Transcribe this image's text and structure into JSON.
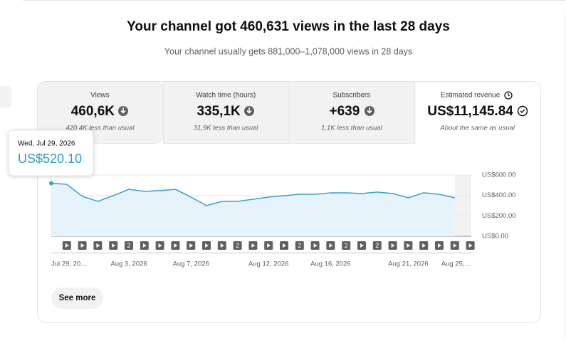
{
  "header": {
    "title": "Your channel got 460,631 views in the last 28 days",
    "subtitle": "Your channel usually gets 881,000–1,078,000 views in 28 days"
  },
  "metrics": [
    {
      "label": "Views",
      "value": "460,6K",
      "note": "420,4K less than usual"
    },
    {
      "label": "Watch time (hours)",
      "value": "335,1K",
      "note": "31,9K less than usual"
    },
    {
      "label": "Subscribers",
      "value": "+639",
      "note": "1,1K less than usual"
    },
    {
      "label": "Estimated revenue",
      "value": "US$11,145.84",
      "note": "About the same as usual"
    }
  ],
  "tooltip": {
    "date": "Wed, Jul 29, 2026",
    "value": "US$520.10"
  },
  "chart": {
    "type": "area",
    "color": "#3a9fd0",
    "categories": [
      "Jul 29, 20…",
      null,
      null,
      null,
      null,
      "Aug 3, 2026",
      null,
      null,
      null,
      "Aug 7, 2026",
      null,
      null,
      null,
      null,
      "Aug 12, 2026",
      null,
      null,
      null,
      "Aug 16, 2026",
      null,
      null,
      null,
      null,
      "Aug 21, 2026",
      null,
      null,
      null,
      "Aug 25,…"
    ],
    "values": [
      520.1,
      509,
      391,
      342,
      398,
      460,
      440,
      447,
      460,
      384,
      300,
      342,
      342,
      363,
      384,
      398,
      412,
      412,
      426,
      426,
      419,
      433,
      419,
      377,
      426,
      412,
      377,
      null
    ],
    "markers": [
      null,
      null,
      null,
      null,
      "2",
      null,
      null,
      null,
      null,
      null,
      null,
      "2",
      null,
      null,
      null,
      "2",
      null,
      null,
      "2",
      null,
      "2",
      null,
      null,
      null,
      null,
      null,
      null
    ],
    "ylim": [
      0,
      600
    ],
    "yticks": [
      {
        "value": 0,
        "label": "US$0.00"
      },
      {
        "value": 200,
        "label": "US$200.00"
      },
      {
        "value": 400,
        "label": "US$400.00"
      },
      {
        "value": 600,
        "label": "US$600.00"
      }
    ]
  },
  "button": "See more"
}
